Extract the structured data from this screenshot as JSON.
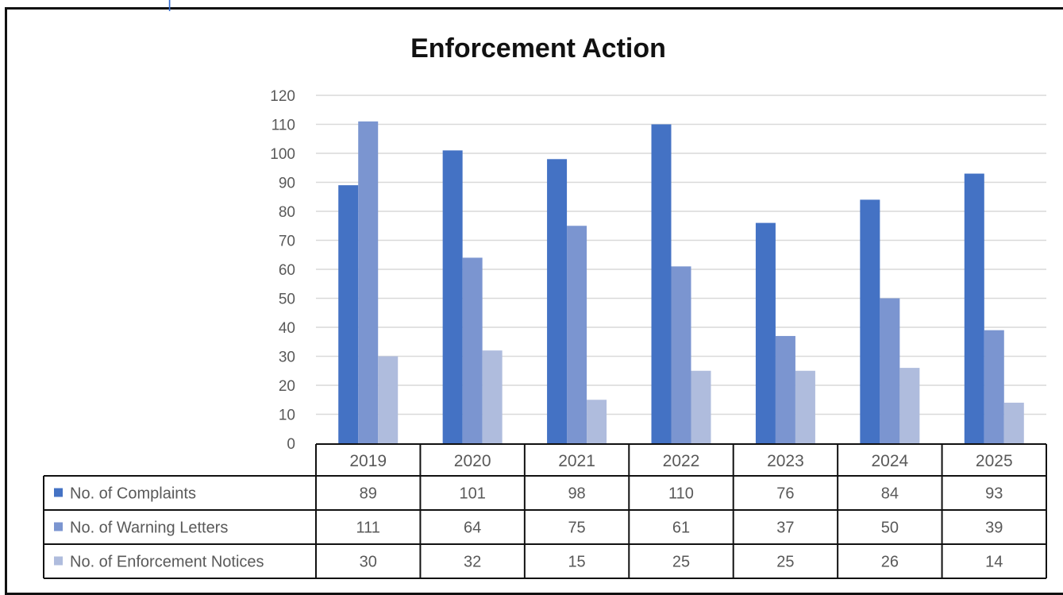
{
  "colors": {
    "complaints": "#4472c4",
    "warning_letters": "#7b95d0",
    "enforcement_notices": "#afbcdd",
    "gridline": "#d9d9d9",
    "text": "#595959"
  },
  "chart_data": {
    "type": "bar",
    "title": "Enforcement Action",
    "categories": [
      "2019",
      "2020",
      "2021",
      "2022",
      "2023",
      "2024",
      "2025"
    ],
    "series": [
      {
        "name": "No. of Complaints",
        "values": [
          89,
          101,
          98,
          110,
          76,
          84,
          93
        ]
      },
      {
        "name": "No. of Warning Letters",
        "values": [
          111,
          64,
          75,
          61,
          37,
          50,
          39
        ]
      },
      {
        "name": "No. of Enforcement Notices",
        "values": [
          30,
          32,
          15,
          25,
          25,
          26,
          14
        ]
      }
    ],
    "ylim": [
      0,
      120
    ],
    "yticks": [
      "0",
      "10",
      "20",
      "30",
      "40",
      "50",
      "60",
      "70",
      "80",
      "90",
      "100",
      "110",
      "120"
    ],
    "grid": true,
    "legend": "data-table-below"
  }
}
